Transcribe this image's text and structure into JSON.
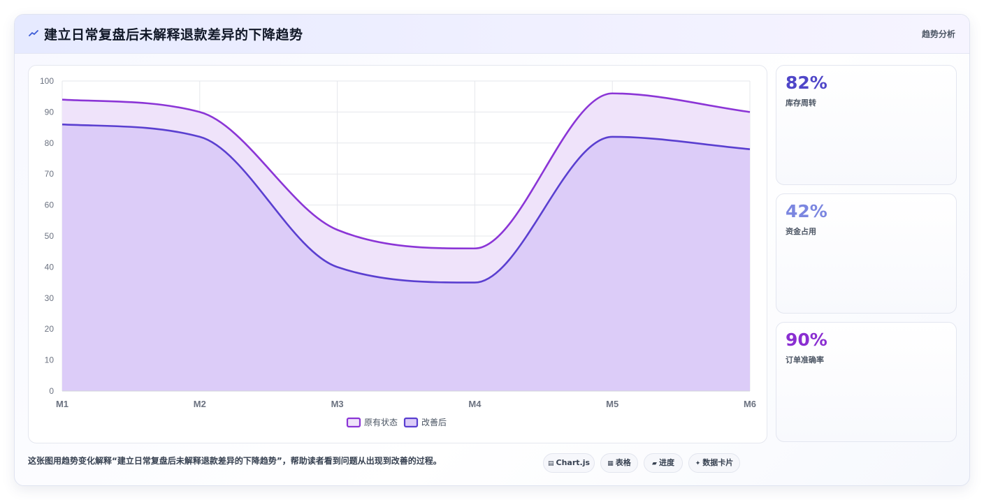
{
  "header": {
    "title": "建立日常复盘后未解释退款差异的下降趋势",
    "tag": "趋势分析"
  },
  "kpis": [
    {
      "value": "82%",
      "label": "库存周转",
      "color": "#4f46c8"
    },
    {
      "value": "42%",
      "label": "资金占用",
      "color": "#7b86e0"
    },
    {
      "value": "90%",
      "label": "订单准确率",
      "color": "#8a2ed1"
    }
  ],
  "footer": {
    "caption": "这张图用趋势变化解释“建立日常复盘后未解释退款差异的下降趋势”，帮助读者看到问题从出现到改善的过程。",
    "pills": [
      {
        "icon": "▤",
        "label": "Chart.js"
      },
      {
        "icon": "▦",
        "label": "表格"
      },
      {
        "icon": "▰",
        "label": "进度"
      },
      {
        "icon": "✦",
        "label": "数据卡片"
      }
    ]
  },
  "chart_data": {
    "type": "area",
    "categories": [
      "M1",
      "M2",
      "M3",
      "M4",
      "M5",
      "M6"
    ],
    "ylim": [
      0,
      100
    ],
    "yticks": [
      0,
      10,
      20,
      30,
      40,
      50,
      60,
      70,
      80,
      90,
      100
    ],
    "grid": true,
    "legend": "bottom",
    "series": [
      {
        "name": "原有状态",
        "values": [
          94,
          90,
          52,
          46,
          96,
          90
        ],
        "color": "#8b35d6",
        "fill": "#efe3fa"
      },
      {
        "name": "改善后",
        "values": [
          86,
          82,
          40,
          35,
          82,
          78
        ],
        "color": "#5a3fd0",
        "fill": "#dcccf8"
      }
    ]
  }
}
